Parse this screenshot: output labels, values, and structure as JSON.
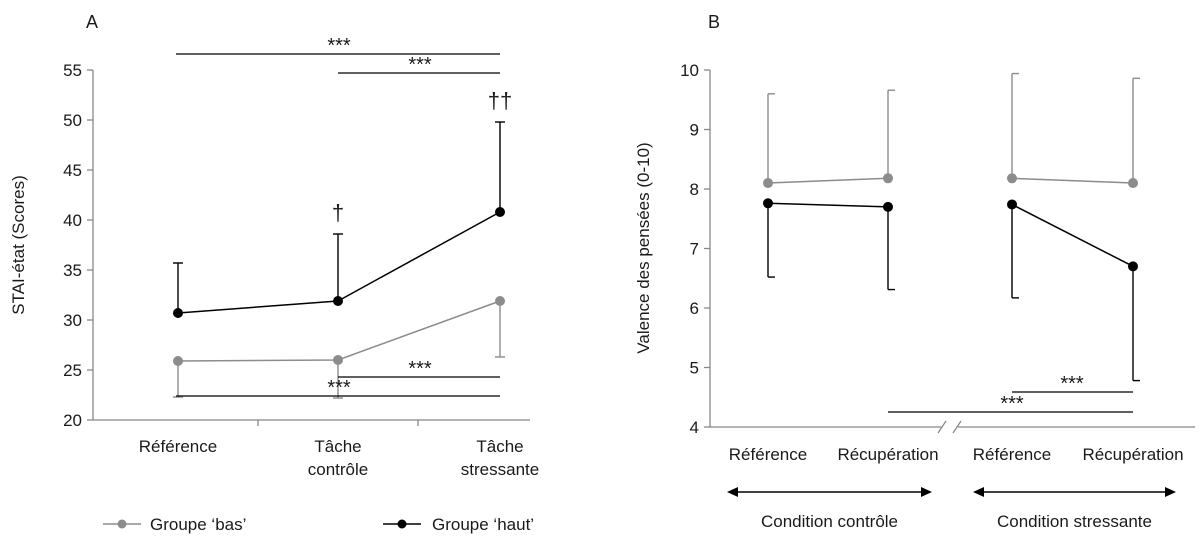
{
  "chart_data": [
    {
      "panel": "A",
      "type": "line",
      "ylabel": "STAI-état  (Scores)",
      "ylim": [
        20,
        55
      ],
      "yticks": [
        20,
        25,
        30,
        35,
        40,
        45,
        50,
        55
      ],
      "categories": [
        {
          "lines": [
            "Référence"
          ]
        },
        {
          "lines": [
            "Tâche",
            "contrôle"
          ]
        },
        {
          "lines": [
            "Tâche",
            "stressante"
          ]
        }
      ],
      "series": [
        {
          "name": "Groupe ‘bas’",
          "color": "#8c8c8c",
          "values": [
            25.9,
            26.0,
            31.9
          ],
          "err_down": [
            3.6,
            3.8,
            5.6
          ]
        },
        {
          "name": "Groupe ‘haut’",
          "color": "#000000",
          "values": [
            30.7,
            31.9,
            40.8
          ],
          "err_up": [
            5.0,
            6.7,
            9.0
          ]
        }
      ],
      "annotations": {
        "daggers": [
          {
            "category": 1,
            "text": "†"
          },
          {
            "category": 2,
            "text": "††"
          }
        ],
        "brackets": [
          {
            "from": 0,
            "to": 2,
            "level": 1,
            "text": "***"
          },
          {
            "from": 1,
            "to": 2,
            "level": 2,
            "text": "***"
          },
          {
            "from": 1,
            "to": 2,
            "level": -1,
            "text": "***"
          },
          {
            "from": 0,
            "to": 2,
            "level": -2,
            "text": "***"
          }
        ]
      }
    },
    {
      "panel": "B",
      "type": "line",
      "ylabel": "Valence des pensées (0-10)",
      "ylim": [
        4,
        10
      ],
      "yticks": [
        4,
        5,
        6,
        7,
        8,
        9,
        10
      ],
      "categories": [
        "Référence",
        "Récupération",
        "Référence",
        "Récupération"
      ],
      "groups": [
        {
          "label": "Condition contrôle",
          "categories": [
            0,
            1
          ]
        },
        {
          "label": "Condition stressante",
          "categories": [
            2,
            3
          ]
        }
      ],
      "series": [
        {
          "name": "Groupe ‘bas’",
          "color": "#8c8c8c",
          "values": [
            8.1,
            8.18,
            8.18,
            8.1
          ],
          "err_up": [
            1.5,
            1.48,
            1.76,
            1.76
          ]
        },
        {
          "name": "Groupe ‘haut’",
          "color": "#000000",
          "values": [
            7.76,
            7.7,
            7.74,
            6.7
          ],
          "err_down": [
            1.24,
            1.39,
            1.57,
            1.92
          ]
        }
      ],
      "annotations": {
        "brackets": [
          {
            "from": 3,
            "to": 4,
            "level": 1,
            "text": "***"
          },
          {
            "from": 1,
            "to": 4,
            "level": 2,
            "text": "***",
            "broken": true
          }
        ]
      }
    }
  ],
  "legend": [
    {
      "label": "Groupe ‘bas’",
      "color": "#8c8c8c"
    },
    {
      "label": "Groupe ‘haut’",
      "color": "#000000"
    }
  ]
}
